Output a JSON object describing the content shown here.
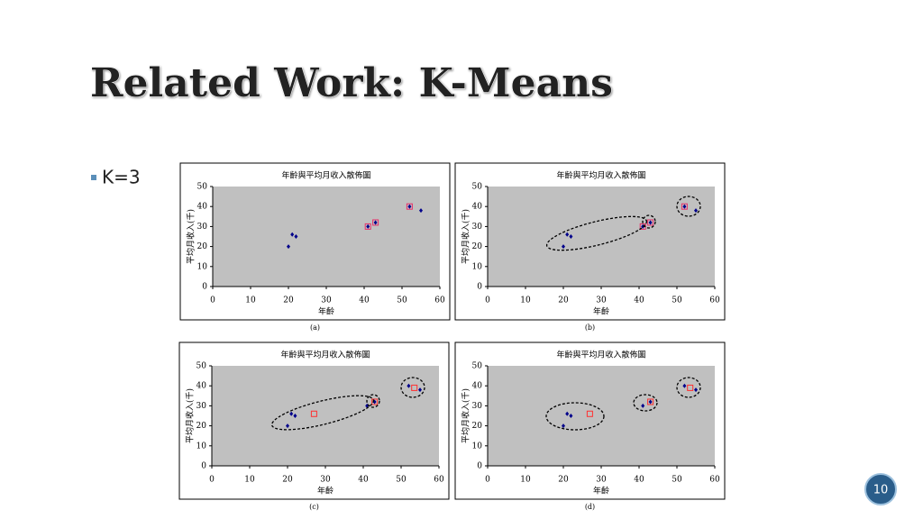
{
  "slide": {
    "title": "Related Work:  K-Means",
    "bullet": "K=3",
    "page_number": "10"
  },
  "chart_data": [
    {
      "type": "scatter",
      "title": "年齡與平均月收入散佈圖",
      "x_label": "年齡",
      "y_label": "平均月收入(千)",
      "caption": "(a)",
      "xlim": [
        0,
        60
      ],
      "xticks": [
        0,
        10,
        20,
        30,
        40,
        50,
        60
      ],
      "ylim": [
        0,
        50
      ],
      "yticks": [
        0,
        10,
        20,
        30,
        40,
        50
      ],
      "points": {
        "color": "#00008b",
        "x": [
          20,
          21,
          22,
          41,
          43,
          52,
          55
        ],
        "y": [
          20,
          26,
          25,
          30,
          32,
          40,
          38
        ]
      },
      "centers": {
        "color": "#e8306a",
        "x": [
          41,
          43,
          52
        ],
        "y": [
          30,
          32,
          40
        ]
      }
    },
    {
      "type": "scatter",
      "title": "年齡與平均月收入散佈圖",
      "x_label": "年齡",
      "y_label": "平均月收入(千)",
      "caption": "(b)",
      "xlim": [
        0,
        60
      ],
      "xticks": [
        0,
        10,
        20,
        30,
        40,
        50,
        60
      ],
      "ylim": [
        0,
        50
      ],
      "yticks": [
        0,
        10,
        20,
        30,
        40,
        50
      ],
      "points": {
        "color": "#00008b",
        "x": [
          20,
          21,
          22,
          41,
          43,
          52,
          55
        ],
        "y": [
          20,
          26,
          25,
          30,
          32,
          40,
          38
        ]
      },
      "centers": {
        "color": "#e8306a",
        "x": [
          41,
          43,
          52
        ],
        "y": [
          30,
          32,
          40
        ]
      }
    },
    {
      "type": "scatter",
      "title": "年齡與平均月收入散佈圖",
      "x_label": "年齡",
      "y_label": "平均月收入(千)",
      "caption": "(c)",
      "xlim": [
        0,
        60
      ],
      "xticks": [
        0,
        10,
        20,
        30,
        40,
        50,
        60
      ],
      "ylim": [
        0,
        50
      ],
      "yticks": [
        0,
        10,
        20,
        30,
        40,
        50
      ],
      "points": {
        "color": "#00008b",
        "x": [
          20,
          21,
          22,
          41,
          43,
          52,
          55
        ],
        "y": [
          20,
          26,
          25,
          30,
          32,
          40,
          38
        ]
      },
      "centers": {
        "color": "#ff3030",
        "x": [
          27,
          43,
          53.5
        ],
        "y": [
          26,
          32,
          39
        ]
      }
    },
    {
      "type": "scatter",
      "title": "年齡與平均月收入散佈圖",
      "x_label": "年齡",
      "y_label": "平均月收入(千)",
      "caption": "(d)",
      "xlim": [
        0,
        60
      ],
      "xticks": [
        0,
        10,
        20,
        30,
        40,
        50,
        60
      ],
      "ylim": [
        0,
        50
      ],
      "yticks": [
        0,
        10,
        20,
        30,
        40,
        50
      ],
      "points": {
        "color": "#00008b",
        "x": [
          20,
          21,
          22,
          41,
          43,
          52,
          55
        ],
        "y": [
          20,
          26,
          25,
          30,
          32,
          40,
          38
        ]
      },
      "centers": {
        "color": "#ff3030",
        "x": [
          27,
          43,
          53.5
        ],
        "y": [
          26,
          32,
          39
        ]
      }
    }
  ]
}
